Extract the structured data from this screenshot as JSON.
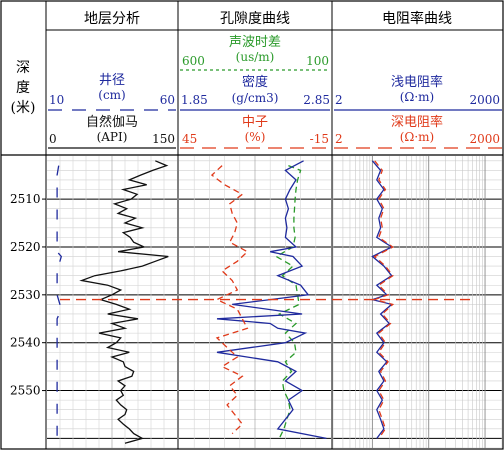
{
  "chart_data": {
    "type": "line",
    "depth_axis": {
      "title": "深度",
      "unit": "(米)",
      "ticks": [
        2510,
        2520,
        2530,
        2540,
        2550
      ],
      "range": [
        2501,
        2562
      ]
    },
    "tracks": [
      {
        "title": "地层分析",
        "curves": [
          {
            "name": "井径",
            "unit": "(cm)",
            "min_label": "10",
            "max_label": "60",
            "range": [
              10,
              60
            ],
            "color": "#1f2a9e",
            "dash": "dashed",
            "depth": [
              2503,
              2505,
              2507,
              2510,
              2513,
              2515,
              2518,
              2521,
              2522,
              2525,
              2528,
              2530,
              2533,
              2535,
              2538,
              2541,
              2545,
              2548,
              2551,
              2555,
              2560
            ],
            "values": [
              14.5,
              13.9,
              13.9,
              13.9,
              13.9,
              13.9,
              13.9,
              13.9,
              15.5,
              13.9,
              13.9,
              13.9,
              15.5,
              13.9,
              13.9,
              13.9,
              13.9,
              13.9,
              13.9,
              13.9,
              13.9
            ]
          },
          {
            "name": "自然伽马",
            "unit": "(API)",
            "min_label": "0",
            "max_label": "150",
            "range": [
              0,
              150
            ],
            "color": "#111111",
            "dash": "solid",
            "depth": [
              2502,
              2503,
              2504,
              2505,
              2506,
              2507,
              2508,
              2509,
              2510,
              2511,
              2512,
              2513,
              2514,
              2515,
              2516,
              2517,
              2518,
              2519,
              2520,
              2521,
              2522,
              2523,
              2524,
              2525,
              2526,
              2527,
              2528,
              2529,
              2530,
              2531,
              2532,
              2533,
              2534,
              2535,
              2536,
              2537,
              2538,
              2539,
              2540,
              2541,
              2542,
              2543,
              2544,
              2545,
              2546,
              2547,
              2548,
              2549,
              2550,
              2551,
              2552,
              2553,
              2554,
              2555,
              2556,
              2557,
              2558,
              2559,
              2560,
              2561
            ],
            "values": [
              125,
              138,
              122,
              108,
              95,
              115,
              88,
              104,
              97,
              78,
              92,
              82,
              102,
              90,
              110,
              88,
              96,
              100,
              112,
              82,
              140,
              125,
              110,
              85,
              55,
              40,
              70,
              85,
              75,
              62,
              80,
              95,
              70,
              105,
              75,
              90,
              60,
              85,
              80,
              70,
              95,
              75,
              88,
              90,
              100,
              98,
              82,
              90,
              85,
              88,
              80,
              85,
              92,
              90,
              82,
              88,
              95,
              100,
              110,
              90
            ]
          }
        ]
      },
      {
        "title": "孔隙度曲线",
        "curves": [
          {
            "name": "声波时差",
            "unit": "(us/m)",
            "min_label": "600",
            "max_label": "100",
            "range": [
              600,
              100
            ],
            "color": "#2a9a2a",
            "dash": "dashed",
            "depth": [
              2503,
              2504,
              2506,
              2508,
              2510,
              2512,
              2514,
              2516,
              2518,
              2520,
              2522,
              2524,
              2526,
              2528,
              2530,
              2532,
              2534,
              2536,
              2538,
              2540,
              2542,
              2544,
              2546,
              2548,
              2550,
              2552,
              2554,
              2556,
              2558,
              2560
            ],
            "values": [
              240,
              200,
              210,
              215,
              218,
              220,
              222,
              222,
              218,
              225,
              280,
              225,
              260,
              215,
              210,
              205,
              270,
              215,
              250,
              220,
              215,
              250,
              230,
              260,
              255,
              240,
              235,
              245,
              255,
              270
            ]
          },
          {
            "name": "密度",
            "unit": "(g/cm3)",
            "min_label": "1.85",
            "max_label": "2.85",
            "range": [
              1.85,
              2.85
            ],
            "color": "#1f2a9e",
            "dash": "solid",
            "depth": [
              2502,
              2504,
              2506,
              2508,
              2510,
              2512,
              2514,
              2516,
              2518,
              2520,
              2521,
              2522,
              2524,
              2526,
              2528,
              2530,
              2531,
              2532,
              2534,
              2535,
              2536,
              2537,
              2538,
              2540,
              2542,
              2544,
              2546,
              2548,
              2550,
              2552,
              2554,
              2556,
              2558,
              2560
            ],
            "values": [
              2.67,
              2.55,
              2.62,
              2.58,
              2.55,
              2.57,
              2.55,
              2.56,
              2.55,
              2.62,
              2.45,
              2.6,
              2.66,
              2.5,
              2.65,
              2.7,
              2.45,
              2.2,
              2.66,
              2.1,
              2.45,
              2.5,
              2.68,
              2.55,
              2.1,
              2.5,
              2.62,
              2.55,
              2.66,
              2.57,
              2.6,
              2.55,
              2.5,
              2.82
            ]
          },
          {
            "name": "中子",
            "unit": "(%)",
            "min_label": "45",
            "max_label": "-15",
            "range": [
              45,
              -15
            ],
            "color": "#e03a1a",
            "dash": "dashed",
            "depth": [
              2503,
              2505,
              2507,
              2509,
              2511,
              2513,
              2515,
              2517,
              2519,
              2521,
              2523,
              2525,
              2527,
              2529,
              2531,
              2533,
              2535,
              2537,
              2539,
              2541,
              2543,
              2545,
              2547,
              2549,
              2551,
              2553,
              2555,
              2557,
              2559
            ],
            "values": [
              28,
              32,
              27,
              20,
              25,
              24,
              22,
              23,
              25,
              18,
              22,
              28,
              24,
              22,
              30,
              22,
              20,
              18,
              30,
              26,
              22,
              28,
              20,
              25,
              22,
              26,
              23,
              20,
              24
            ]
          }
        ]
      },
      {
        "title": "电阻率曲线",
        "curves": [
          {
            "name": "浅电阻率",
            "unit": "(Ω·m)",
            "min_label": "2",
            "max_label": "2000",
            "range": [
              2,
              2000
            ],
            "scale": "log",
            "color": "#1f2a9e",
            "dash": "solid",
            "depth": [
              2502,
              2504,
              2506,
              2508,
              2510,
              2512,
              2514,
              2516,
              2518,
              2520,
              2522,
              2524,
              2526,
              2528,
              2530,
              2531,
              2532,
              2534,
              2536,
              2538,
              2540,
              2542,
              2544,
              2546,
              2548,
              2550,
              2552,
              2554,
              2556,
              2558,
              2560
            ],
            "values": [
              10,
              14,
              12,
              16,
              12,
              15,
              13,
              14,
              12,
              22,
              10,
              16,
              22,
              12,
              18,
              10,
              22,
              14,
              20,
              12,
              16,
              12,
              18,
              13,
              16,
              12,
              15,
              12,
              14,
              16,
              12
            ]
          },
          {
            "name": "深电阻率",
            "unit": "(Ω·m)",
            "min_label": "2",
            "max_label": "2000",
            "range": [
              2,
              2000
            ],
            "scale": "log",
            "color": "#e03a1a",
            "dash": "dashed",
            "depth": [
              2502,
              2504,
              2506,
              2508,
              2510,
              2512,
              2514,
              2516,
              2518,
              2520,
              2522,
              2524,
              2526,
              2528,
              2530,
              2531,
              2532,
              2534,
              2536,
              2538,
              2540,
              2542,
              2544,
              2546,
              2548,
              2550,
              2552,
              2554,
              2556,
              2558,
              2560
            ],
            "values": [
              11,
              15,
              13,
              17,
              13,
              16,
              14,
              15,
              13,
              23,
              11,
              17,
              23,
              13,
              19,
              11,
              23,
              15,
              21,
              13,
              17,
              13,
              19,
              14,
              17,
              13,
              16,
              13,
              15,
              17,
              13
            ]
          }
        ]
      }
    ],
    "annotations": [
      {
        "type": "horizontal_line",
        "depth": 2531,
        "color": "#e03a1a",
        "dash": "dashed"
      }
    ],
    "grid": true
  }
}
